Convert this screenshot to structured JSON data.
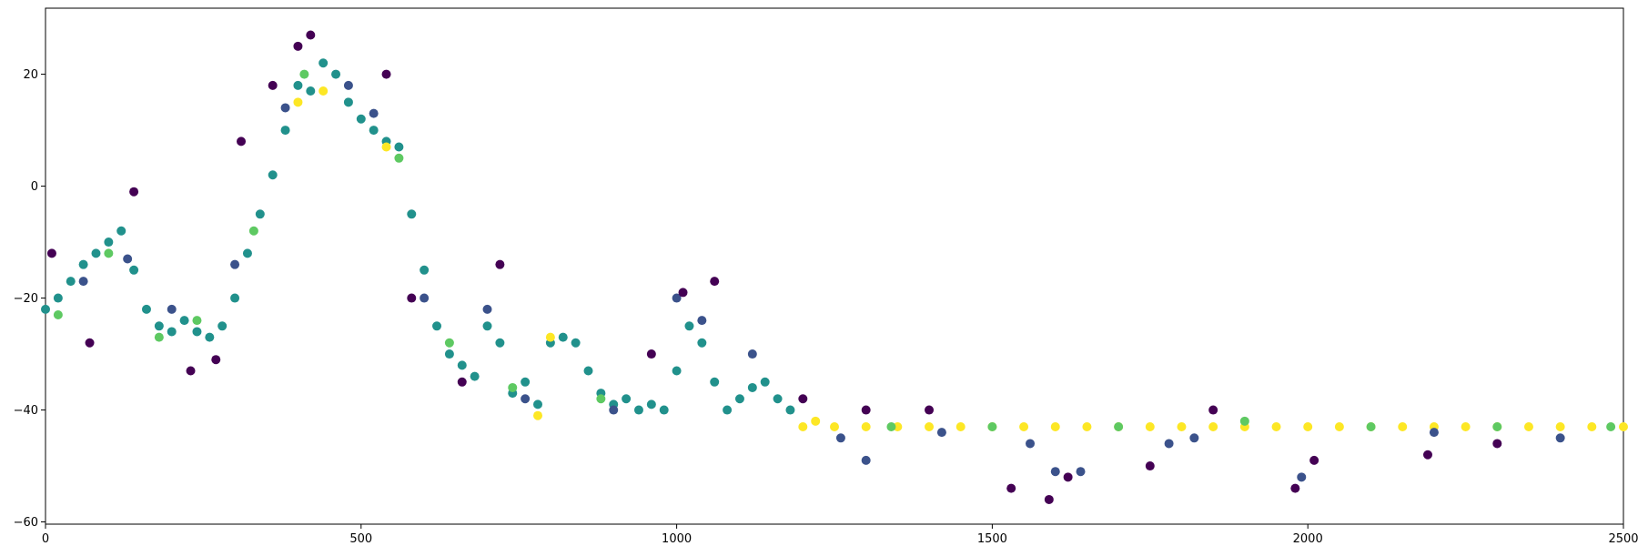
{
  "chart_data": {
    "type": "scatter",
    "xlim": [
      0,
      2500
    ],
    "ylim": [
      -60.4,
      31.8
    ],
    "xticks": [
      0,
      500,
      1000,
      1500,
      2000,
      2500
    ],
    "yticks": [
      {
        "value": -60,
        "label": "−60"
      },
      {
        "value": -40,
        "label": "−40"
      },
      {
        "value": -20,
        "label": "−20"
      },
      0,
      20
    ],
    "series": [
      {
        "color": "#21918c",
        "x": [
          0,
          20,
          40,
          60,
          80,
          100,
          120,
          140,
          160,
          180,
          200,
          220,
          240,
          260,
          280,
          300,
          320,
          340,
          360,
          380,
          400,
          420,
          440,
          460,
          480,
          500,
          520,
          540,
          560,
          580,
          600,
          620,
          640,
          660,
          680,
          700,
          720,
          740,
          760,
          780,
          800,
          820,
          840,
          860,
          880,
          900,
          920,
          940,
          960,
          980,
          1000,
          1020,
          1040,
          1060,
          1080,
          1100,
          1120,
          1140,
          1160,
          1180
        ],
        "values": [
          -22,
          -20,
          -17,
          -14,
          -12,
          -10,
          -8,
          -15,
          -22,
          -25,
          -26,
          -24,
          -26,
          -27,
          -25,
          -20,
          -12,
          -5,
          2,
          10,
          18,
          17,
          22,
          20,
          15,
          12,
          10,
          8,
          7,
          -5,
          -15,
          -25,
          -30,
          -32,
          -34,
          -25,
          -28,
          -37,
          -35,
          -39,
          -28,
          -27,
          -28,
          -33,
          -37,
          -39,
          -38,
          -40,
          -39,
          -40,
          -33,
          -25,
          -28,
          -35,
          -40,
          -38,
          -36,
          -35,
          -38,
          -40
        ]
      },
      {
        "color": "#fde725",
        "x": [
          400,
          440,
          540,
          780,
          800,
          1220,
          1200,
          1250,
          1300,
          1350,
          1400,
          1450,
          1500,
          1550,
          1600,
          1650,
          1700,
          1750,
          1800,
          1850,
          1900,
          1950,
          2000,
          2050,
          2100,
          2150,
          2200,
          2250,
          2300,
          2350,
          2400,
          2450,
          2500
        ],
        "values": [
          15,
          17,
          7,
          -41,
          -27,
          -42,
          -43,
          -43,
          -43,
          -43,
          -43,
          -43,
          -43,
          -43,
          -43,
          -43,
          -43,
          -43,
          -43,
          -43,
          -43,
          -43,
          -43,
          -43,
          -43,
          -43,
          -43,
          -43,
          -43,
          -43,
          -43,
          -43,
          -43
        ]
      },
      {
        "color": "#5ec962",
        "x": [
          20,
          100,
          180,
          240,
          330,
          410,
          560,
          640,
          740,
          880,
          1340,
          1500,
          1700,
          1900,
          2100,
          2300,
          2480
        ],
        "values": [
          -23,
          -12,
          -27,
          -24,
          -8,
          20,
          5,
          -28,
          -36,
          -38,
          -43,
          -43,
          -43,
          -42,
          -43,
          -43,
          -43
        ]
      },
      {
        "color": "#3b528b",
        "x": [
          60,
          130,
          200,
          300,
          380,
          480,
          520,
          600,
          700,
          760,
          900,
          1000,
          1040,
          1120,
          1260,
          1300,
          1420,
          1560,
          1600,
          1640,
          1780,
          1820,
          1990,
          2200,
          2400
        ],
        "values": [
          -17,
          -13,
          -22,
          -14,
          14,
          18,
          13,
          -20,
          -22,
          -38,
          -40,
          -20,
          -24,
          -30,
          -45,
          -49,
          -44,
          -46,
          -51,
          -51,
          -46,
          -45,
          -52,
          -44,
          -45
        ]
      },
      {
        "color": "#440154",
        "x": [
          10,
          70,
          140,
          230,
          270,
          310,
          360,
          400,
          420,
          540,
          580,
          660,
          720,
          960,
          1010,
          1060,
          1200,
          1300,
          1400,
          1530,
          1590,
          1620,
          1750,
          1850,
          1980,
          2010,
          2190,
          2300
        ],
        "values": [
          -12,
          -28,
          -1,
          -33,
          -31,
          8,
          18,
          25,
          27,
          20,
          -20,
          -35,
          -14,
          -30,
          -19,
          -17,
          -38,
          -40,
          -40,
          -54,
          -56,
          -52,
          -50,
          -40,
          -54,
          -49,
          -48,
          -46
        ]
      }
    ]
  }
}
